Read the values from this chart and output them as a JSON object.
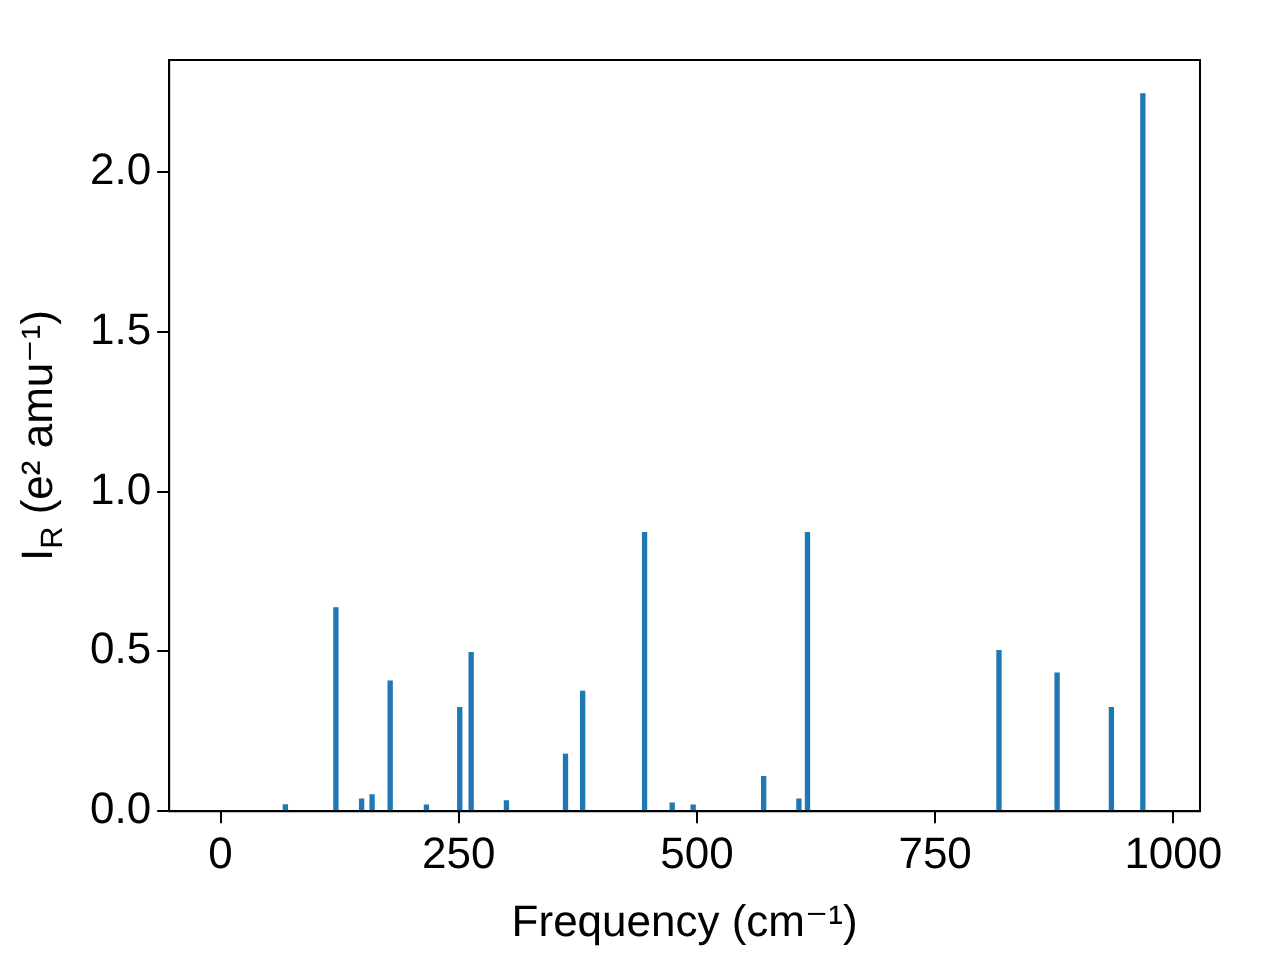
{
  "chart_data": {
    "type": "bar",
    "xlabel": "Frequency (cm⁻¹)",
    "ylabel": "I$_{R}$ (e² amu⁻¹)",
    "x": [
      68,
      121,
      148,
      159,
      178,
      216,
      251,
      263,
      300,
      362,
      380,
      445,
      474,
      496,
      570,
      607,
      616,
      817,
      878,
      935,
      968
    ],
    "series": [
      {
        "color": "#1f77b4",
        "values": [
          0.02,
          0.636,
          0.038,
          0.051,
          0.407,
          0.019,
          0.324,
          0.496,
          0.032,
          0.178,
          0.375,
          0.871,
          0.025,
          0.019,
          0.108,
          0.038,
          0.871,
          0.502,
          0.432,
          0.324,
          2.244
        ]
      }
    ],
    "xlim": [
      -54,
      1028
    ],
    "ylim": [
      0,
      2.35
    ],
    "xticks": [
      0,
      250,
      500,
      750,
      1000
    ],
    "yticks": [
      {
        "value": 0,
        "label": "0.0"
      },
      0.5,
      {
        "value": 1,
        "label": "1.0"
      },
      1.5,
      {
        "value": 2,
        "label": "2.0"
      }
    ],
    "grid": false,
    "legend": false
  }
}
